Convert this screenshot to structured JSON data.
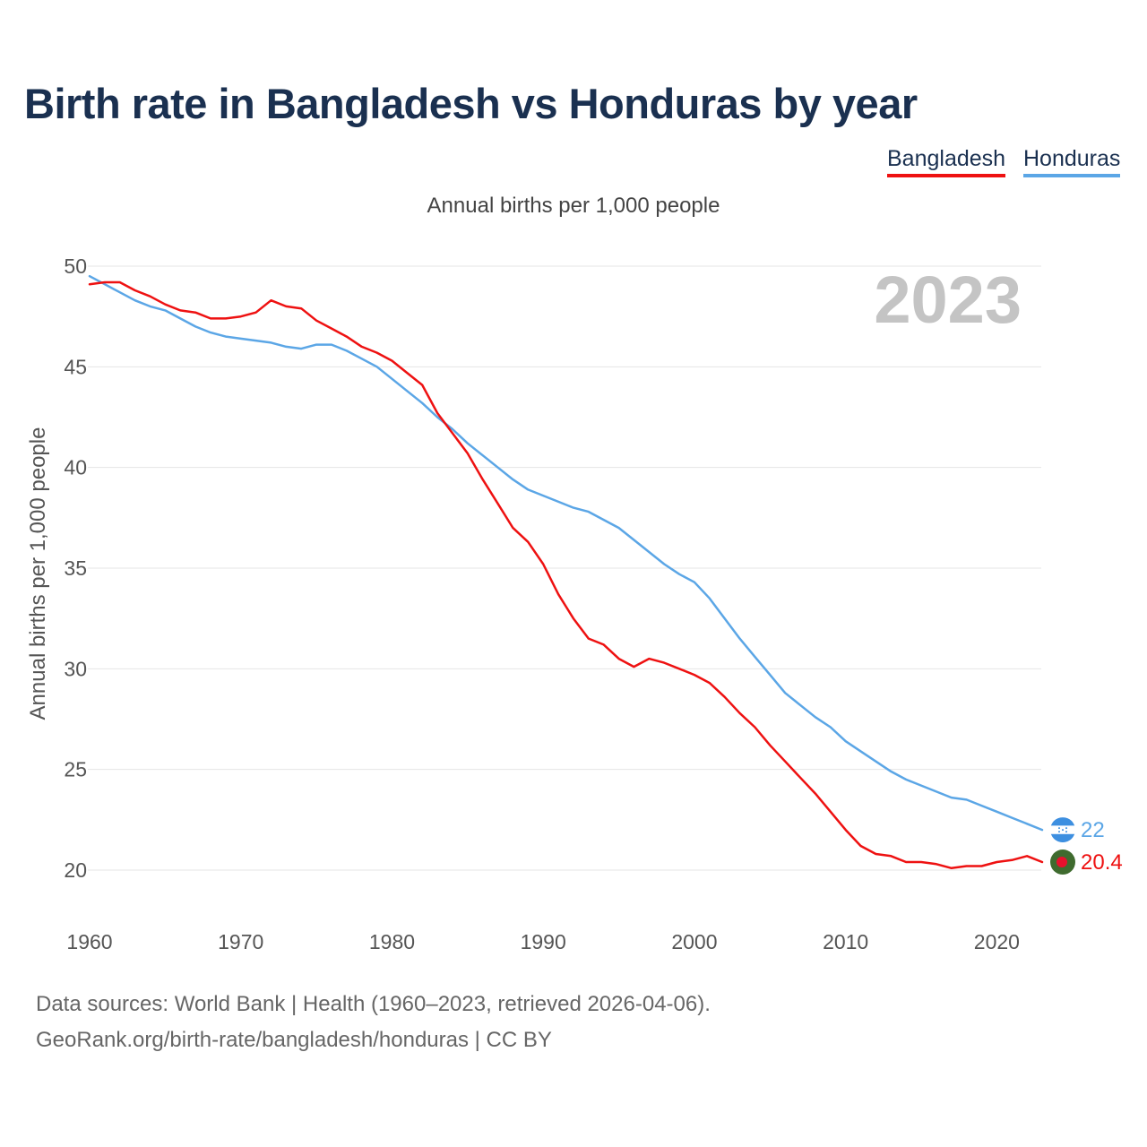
{
  "title": "Birth rate in Bangladesh vs Honduras by year",
  "footer": {
    "source": "Data sources: World Bank | Health (1960–2023, retrieved 2026-04-06).",
    "credit": "GeoRank.org/birth-rate/bangladesh/honduras | CC BY"
  },
  "chart_data": {
    "type": "line",
    "title": "Birth rate in Bangladesh vs Honduras by year",
    "subtitle": "Annual births per 1,000 people",
    "xlabel": "",
    "ylabel": "Annual births per 1,000 people",
    "year_label": "2023",
    "xlim": [
      1960,
      2023
    ],
    "ylim": [
      20,
      50
    ],
    "x_ticks": [
      1960,
      1970,
      1980,
      1990,
      2000,
      2010,
      2020
    ],
    "y_ticks": [
      20,
      25,
      30,
      35,
      40,
      45,
      50
    ],
    "grid": true,
    "legend_position": "top-right",
    "x": [
      1960,
      1961,
      1962,
      1963,
      1964,
      1965,
      1966,
      1967,
      1968,
      1969,
      1970,
      1971,
      1972,
      1973,
      1974,
      1975,
      1976,
      1977,
      1978,
      1979,
      1980,
      1981,
      1982,
      1983,
      1984,
      1985,
      1986,
      1987,
      1988,
      1989,
      1990,
      1991,
      1992,
      1993,
      1994,
      1995,
      1996,
      1997,
      1998,
      1999,
      2000,
      2001,
      2002,
      2003,
      2004,
      2005,
      2006,
      2007,
      2008,
      2009,
      2010,
      2011,
      2012,
      2013,
      2014,
      2015,
      2016,
      2017,
      2018,
      2019,
      2020,
      2021,
      2022,
      2023
    ],
    "series": [
      {
        "name": "Bangladesh",
        "color": "#ee1111",
        "end_label": "20.4",
        "values": [
          49.1,
          49.2,
          49.2,
          48.8,
          48.5,
          48.1,
          47.8,
          47.7,
          47.4,
          47.4,
          47.5,
          47.7,
          48.3,
          48.0,
          47.9,
          47.3,
          46.9,
          46.5,
          46.0,
          45.7,
          45.3,
          44.7,
          44.1,
          42.7,
          41.7,
          40.7,
          39.4,
          38.2,
          37.0,
          36.3,
          35.2,
          33.7,
          32.5,
          31.5,
          31.2,
          30.5,
          30.1,
          30.5,
          30.3,
          30.0,
          29.7,
          29.3,
          28.6,
          27.8,
          27.1,
          26.2,
          25.4,
          24.6,
          23.8,
          22.9,
          22.0,
          21.2,
          20.8,
          20.7,
          20.4,
          20.4,
          20.3,
          20.1,
          20.2,
          20.2,
          20.4,
          20.5,
          20.7,
          20.4
        ]
      },
      {
        "name": "Honduras",
        "color": "#5ba6e6",
        "end_label": "22",
        "values": [
          49.5,
          49.1,
          48.7,
          48.3,
          48.0,
          47.8,
          47.4,
          47.0,
          46.7,
          46.5,
          46.4,
          46.3,
          46.2,
          46.0,
          45.9,
          46.1,
          46.1,
          45.8,
          45.4,
          45.0,
          44.4,
          43.8,
          43.2,
          42.5,
          41.9,
          41.2,
          40.6,
          40.0,
          39.4,
          38.9,
          38.6,
          38.3,
          38.0,
          37.8,
          37.4,
          37.0,
          36.4,
          35.8,
          35.2,
          34.7,
          34.3,
          33.5,
          32.5,
          31.5,
          30.6,
          29.7,
          28.8,
          28.2,
          27.6,
          27.1,
          26.4,
          25.9,
          25.4,
          24.9,
          24.5,
          24.2,
          23.9,
          23.6,
          23.5,
          23.2,
          22.9,
          22.6,
          22.3,
          22.0
        ]
      }
    ]
  }
}
